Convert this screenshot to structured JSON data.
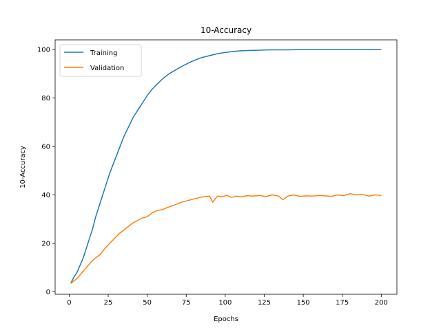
{
  "chart_data": {
    "type": "line",
    "title": "10-Accuracy",
    "xlabel": "Epochs",
    "ylabel": "10-Accuracy",
    "xlim": [
      -9,
      210
    ],
    "ylim": [
      -1,
      104
    ],
    "xticks": [
      0,
      25,
      50,
      75,
      100,
      125,
      150,
      175,
      200
    ],
    "yticks": [
      0,
      20,
      40,
      60,
      80,
      100
    ],
    "grid": false,
    "legend_position": "top-left",
    "series": [
      {
        "name": "Training",
        "color": "#1f77b4",
        "x": [
          1,
          3,
          5,
          7,
          9,
          11,
          13,
          15,
          17,
          20,
          23,
          26,
          29,
          32,
          35,
          38,
          41,
          44,
          47,
          50,
          53,
          56,
          60,
          64,
          68,
          72,
          76,
          80,
          85,
          90,
          95,
          100,
          105,
          110,
          115,
          120,
          125,
          130,
          140,
          150,
          160,
          170,
          180,
          190,
          200
        ],
        "y": [
          3.5,
          6,
          8,
          11,
          14,
          18,
          22,
          26,
          31,
          37,
          43,
          49,
          54,
          59,
          64,
          68,
          72,
          75,
          78,
          81,
          83.5,
          85.5,
          88,
          90,
          91.5,
          93,
          94.3,
          95.5,
          96.7,
          97.5,
          98.3,
          98.8,
          99.2,
          99.5,
          99.6,
          99.7,
          99.8,
          99.9,
          99.9,
          100,
          100,
          100,
          100,
          100,
          100
        ]
      },
      {
        "name": "Validation",
        "color": "#ff7f0e",
        "x": [
          1,
          3,
          5,
          7,
          9,
          11,
          13,
          15,
          17,
          20,
          23,
          26,
          29,
          32,
          35,
          38,
          41,
          44,
          47,
          50,
          53,
          56,
          60,
          63,
          66,
          69,
          72,
          75,
          78,
          81,
          84,
          87,
          90,
          92,
          95,
          98,
          101,
          104,
          107,
          110,
          114,
          118,
          122,
          126,
          130,
          134,
          137,
          140,
          144,
          148,
          152,
          156,
          160,
          164,
          168,
          172,
          176,
          180,
          184,
          188,
          192,
          196,
          200
        ],
        "y": [
          3.5,
          4.5,
          5.5,
          7,
          8.5,
          10,
          11.5,
          13,
          14,
          15.5,
          18,
          20,
          22,
          24,
          25.5,
          27,
          28.5,
          29.5,
          30.5,
          31,
          32.5,
          33.5,
          34,
          34.8,
          35.5,
          36.2,
          37,
          37.5,
          38,
          38.5,
          39,
          39.3,
          39.5,
          37,
          39.5,
          39.3,
          39.8,
          39,
          39.5,
          39.2,
          39.7,
          39.5,
          39.8,
          39.3,
          40,
          39.6,
          38,
          39.5,
          40,
          39.4,
          39.6,
          39.5,
          39.8,
          39.6,
          39.4,
          40,
          39.7,
          40.5,
          40,
          40.2,
          39.5,
          40,
          39.8
        ]
      }
    ]
  }
}
